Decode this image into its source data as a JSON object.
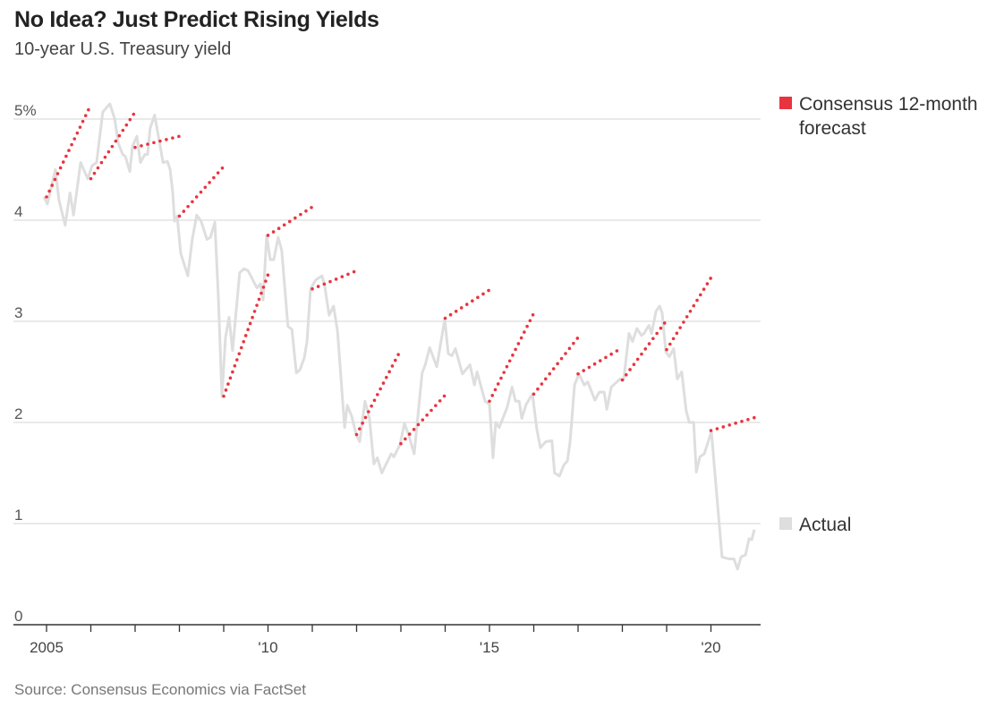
{
  "title": "No Idea? Just Predict Rising Yields",
  "subtitle": "10-year U.S. Treasury yield",
  "source": "Source: Consensus Economics via FactSet",
  "chart_data": {
    "type": "line",
    "title": "No Idea? Just Predict Rising Yields",
    "subtitle": "10-year U.S. Treasury yield",
    "xlim": [
      2004.7,
      2021.1
    ],
    "ylim": [
      0,
      5.4
    ],
    "grid": true,
    "y_ticks": [
      {
        "v": 0,
        "label": "0"
      },
      {
        "v": 1,
        "label": "1"
      },
      {
        "v": 2,
        "label": "2"
      },
      {
        "v": 3,
        "label": "3"
      },
      {
        "v": 4,
        "label": "4"
      },
      {
        "v": 5,
        "label": "5%"
      }
    ],
    "x_ticks": [
      {
        "v": 2005,
        "label": "2005"
      },
      {
        "v": 2010,
        "label": "'10"
      },
      {
        "v": 2015,
        "label": "'15"
      },
      {
        "v": 2020,
        "label": "'20"
      }
    ],
    "x_minor_ticks": [
      2005,
      2006,
      2007,
      2008,
      2009,
      2010,
      2011,
      2012,
      2013,
      2014,
      2015,
      2016,
      2017,
      2018,
      2019,
      2020
    ],
    "legend": {
      "placement": "right",
      "entries": [
        {
          "label_lines": [
            "Consensus 12-month",
            "forecast"
          ],
          "color": "#e8343f"
        },
        {
          "label_lines": [
            "Actual"
          ],
          "color": "#dedede"
        }
      ]
    },
    "series": [
      {
        "name": "Actual",
        "color": "#dedede",
        "points": [
          [
            2004.94,
            4.23
          ],
          [
            2005.02,
            4.16
          ],
          [
            2005.2,
            4.5
          ],
          [
            2005.28,
            4.2
          ],
          [
            2005.42,
            3.95
          ],
          [
            2005.53,
            4.27
          ],
          [
            2005.61,
            4.05
          ],
          [
            2005.77,
            4.57
          ],
          [
            2005.93,
            4.41
          ],
          [
            2006.03,
            4.54
          ],
          [
            2006.13,
            4.57
          ],
          [
            2006.27,
            5.07
          ],
          [
            2006.43,
            5.15
          ],
          [
            2006.54,
            5.0
          ],
          [
            2006.62,
            4.76
          ],
          [
            2006.72,
            4.65
          ],
          [
            2006.78,
            4.63
          ],
          [
            2006.88,
            4.48
          ],
          [
            2006.94,
            4.73
          ],
          [
            2007.04,
            4.83
          ],
          [
            2007.12,
            4.57
          ],
          [
            2007.22,
            4.65
          ],
          [
            2007.28,
            4.65
          ],
          [
            2007.34,
            4.91
          ],
          [
            2007.44,
            5.04
          ],
          [
            2007.53,
            4.82
          ],
          [
            2007.63,
            4.57
          ],
          [
            2007.73,
            4.58
          ],
          [
            2007.79,
            4.5
          ],
          [
            2007.85,
            4.27
          ],
          [
            2007.89,
            3.99
          ],
          [
            2007.95,
            4.04
          ],
          [
            2008.03,
            3.67
          ],
          [
            2008.19,
            3.45
          ],
          [
            2008.29,
            3.81
          ],
          [
            2008.39,
            4.05
          ],
          [
            2008.49,
            3.99
          ],
          [
            2008.62,
            3.81
          ],
          [
            2008.7,
            3.83
          ],
          [
            2008.8,
            3.98
          ],
          [
            2008.88,
            3.23
          ],
          [
            2008.96,
            2.26
          ],
          [
            2009.04,
            2.84
          ],
          [
            2009.12,
            3.04
          ],
          [
            2009.2,
            2.71
          ],
          [
            2009.36,
            3.48
          ],
          [
            2009.46,
            3.52
          ],
          [
            2009.55,
            3.5
          ],
          [
            2009.75,
            3.33
          ],
          [
            2009.83,
            3.37
          ],
          [
            2009.89,
            3.21
          ],
          [
            2009.97,
            3.85
          ],
          [
            2010.05,
            3.61
          ],
          [
            2010.13,
            3.61
          ],
          [
            2010.23,
            3.83
          ],
          [
            2010.31,
            3.7
          ],
          [
            2010.45,
            2.95
          ],
          [
            2010.54,
            2.92
          ],
          [
            2010.64,
            2.49
          ],
          [
            2010.72,
            2.52
          ],
          [
            2010.82,
            2.64
          ],
          [
            2010.88,
            2.8
          ],
          [
            2010.96,
            3.32
          ],
          [
            2011.08,
            3.41
          ],
          [
            2011.22,
            3.45
          ],
          [
            2011.28,
            3.35
          ],
          [
            2011.38,
            3.06
          ],
          [
            2011.48,
            3.15
          ],
          [
            2011.57,
            2.9
          ],
          [
            2011.73,
            1.95
          ],
          [
            2011.79,
            2.17
          ],
          [
            2011.89,
            2.06
          ],
          [
            2011.99,
            1.88
          ],
          [
            2012.07,
            1.81
          ],
          [
            2012.19,
            2.21
          ],
          [
            2012.29,
            2.04
          ],
          [
            2012.39,
            1.59
          ],
          [
            2012.47,
            1.65
          ],
          [
            2012.57,
            1.5
          ],
          [
            2012.78,
            1.69
          ],
          [
            2012.84,
            1.66
          ],
          [
            2012.98,
            1.78
          ],
          [
            2013.08,
            1.99
          ],
          [
            2013.18,
            1.87
          ],
          [
            2013.3,
            1.69
          ],
          [
            2013.48,
            2.49
          ],
          [
            2013.55,
            2.57
          ],
          [
            2013.65,
            2.74
          ],
          [
            2013.81,
            2.55
          ],
          [
            2013.99,
            3.02
          ],
          [
            2014.07,
            2.68
          ],
          [
            2014.15,
            2.66
          ],
          [
            2014.23,
            2.73
          ],
          [
            2014.39,
            2.48
          ],
          [
            2014.56,
            2.57
          ],
          [
            2014.66,
            2.37
          ],
          [
            2014.72,
            2.5
          ],
          [
            2014.9,
            2.21
          ],
          [
            2015.0,
            2.18
          ],
          [
            2015.08,
            1.65
          ],
          [
            2015.14,
            2.0
          ],
          [
            2015.22,
            1.95
          ],
          [
            2015.4,
            2.15
          ],
          [
            2015.51,
            2.35
          ],
          [
            2015.59,
            2.21
          ],
          [
            2015.67,
            2.21
          ],
          [
            2015.73,
            2.04
          ],
          [
            2015.83,
            2.18
          ],
          [
            2015.97,
            2.28
          ],
          [
            2016.07,
            1.93
          ],
          [
            2016.15,
            1.75
          ],
          [
            2016.27,
            1.81
          ],
          [
            2016.41,
            1.82
          ],
          [
            2016.47,
            1.5
          ],
          [
            2016.58,
            1.47
          ],
          [
            2016.68,
            1.58
          ],
          [
            2016.76,
            1.62
          ],
          [
            2016.82,
            1.81
          ],
          [
            2016.92,
            2.37
          ],
          [
            2017.02,
            2.48
          ],
          [
            2017.14,
            2.37
          ],
          [
            2017.22,
            2.4
          ],
          [
            2017.38,
            2.22
          ],
          [
            2017.48,
            2.3
          ],
          [
            2017.59,
            2.3
          ],
          [
            2017.65,
            2.13
          ],
          [
            2017.75,
            2.35
          ],
          [
            2017.95,
            2.43
          ],
          [
            2018.03,
            2.42
          ],
          [
            2018.15,
            2.88
          ],
          [
            2018.23,
            2.8
          ],
          [
            2018.33,
            2.93
          ],
          [
            2018.43,
            2.86
          ],
          [
            2018.49,
            2.88
          ],
          [
            2018.6,
            2.96
          ],
          [
            2018.66,
            2.88
          ],
          [
            2018.76,
            3.1
          ],
          [
            2018.84,
            3.15
          ],
          [
            2018.9,
            3.08
          ],
          [
            2018.98,
            2.7
          ],
          [
            2019.06,
            2.65
          ],
          [
            2019.16,
            2.73
          ],
          [
            2019.24,
            2.43
          ],
          [
            2019.34,
            2.5
          ],
          [
            2019.44,
            2.12
          ],
          [
            2019.51,
            2.0
          ],
          [
            2019.61,
            2.0
          ],
          [
            2019.67,
            1.51
          ],
          [
            2019.75,
            1.66
          ],
          [
            2019.85,
            1.69
          ],
          [
            2020.01,
            1.91
          ],
          [
            2020.25,
            0.67
          ],
          [
            2020.41,
            0.65
          ],
          [
            2020.52,
            0.65
          ],
          [
            2020.6,
            0.55
          ],
          [
            2020.68,
            0.67
          ],
          [
            2020.78,
            0.69
          ],
          [
            2020.86,
            0.85
          ],
          [
            2020.92,
            0.84
          ],
          [
            2020.98,
            0.94
          ]
        ]
      },
      {
        "name": "Consensus 12-month forecast",
        "color": "#e8343f",
        "segments": [
          {
            "start": [
              2005,
              4.23
            ],
            "end": [
              2006,
              5.14
            ]
          },
          {
            "start": [
              2006,
              4.41
            ],
            "end": [
              2007,
              5.07
            ]
          },
          {
            "start": [
              2007,
              4.72
            ],
            "end": [
              2008,
              4.83
            ]
          },
          {
            "start": [
              2008,
              4.04
            ],
            "end": [
              2009,
              4.53
            ]
          },
          {
            "start": [
              2009,
              2.26
            ],
            "end": [
              2010,
              3.46
            ]
          },
          {
            "start": [
              2010,
              3.85
            ],
            "end": [
              2011,
              4.13
            ]
          },
          {
            "start": [
              2011,
              3.32
            ],
            "end": [
              2012,
              3.5
            ]
          },
          {
            "start": [
              2012,
              1.88
            ],
            "end": [
              2013,
              2.72
            ]
          },
          {
            "start": [
              2013,
              1.79
            ],
            "end": [
              2014,
              2.27
            ]
          },
          {
            "start": [
              2014,
              3.03
            ],
            "end": [
              2015,
              3.31
            ]
          },
          {
            "start": [
              2015,
              2.21
            ],
            "end": [
              2016,
              3.08
            ]
          },
          {
            "start": [
              2016,
              2.28
            ],
            "end": [
              2017,
              2.84
            ]
          },
          {
            "start": [
              2017,
              2.48
            ],
            "end": [
              2018,
              2.74
            ]
          },
          {
            "start": [
              2018,
              2.42
            ],
            "end": [
              2019,
              3.01
            ]
          },
          {
            "start": [
              2019,
              2.72
            ],
            "end": [
              2020,
              3.43
            ]
          },
          {
            "start": [
              2020,
              1.92
            ],
            "end": [
              2021,
              2.05
            ]
          }
        ]
      }
    ]
  }
}
